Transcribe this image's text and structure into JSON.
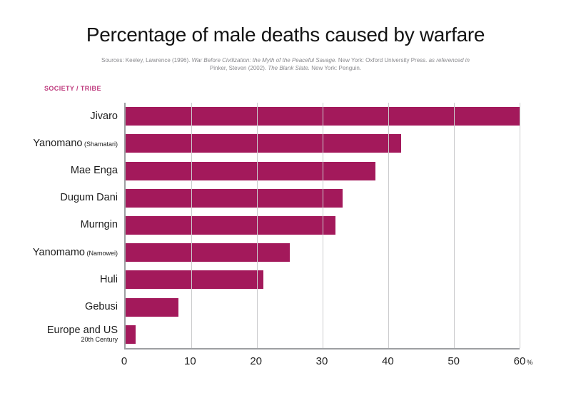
{
  "title": "Percentage of male deaths caused by warfare",
  "sources": {
    "line1": [
      {
        "text": "Sources: Keeley, Lawrence (1996). ",
        "italic": false
      },
      {
        "text": "War Before Civilization: the Myth of the Peaceful Savage.",
        "italic": true
      },
      {
        "text": " New York: Oxford University Press. ",
        "italic": false
      },
      {
        "text": "as referenced in",
        "italic": true
      }
    ],
    "line2": [
      {
        "text": "Pinker, Steven (2002). ",
        "italic": false
      },
      {
        "text": "The Blank Slate.",
        "italic": true
      },
      {
        "text": " New York: Penguin.",
        "italic": false
      }
    ]
  },
  "axis_header": "SOCIETY / TRIBE",
  "chart_data": {
    "type": "bar",
    "orientation": "horizontal",
    "title": "Percentage of male deaths caused by warfare",
    "xlabel": "%",
    "ylabel": "SOCIETY / TRIBE",
    "categories": [
      {
        "name": "Jivaro",
        "annotation": "",
        "annotation_below": ""
      },
      {
        "name": "Yanomano",
        "annotation": "(Shamatari)",
        "annotation_below": ""
      },
      {
        "name": "Mae Enga",
        "annotation": "",
        "annotation_below": ""
      },
      {
        "name": "Dugum Dani",
        "annotation": "",
        "annotation_below": ""
      },
      {
        "name": "Murngin",
        "annotation": "",
        "annotation_below": ""
      },
      {
        "name": "Yanomamo",
        "annotation": "(Namowei)",
        "annotation_below": ""
      },
      {
        "name": "Huli",
        "annotation": "",
        "annotation_below": ""
      },
      {
        "name": "Gebusi",
        "annotation": "",
        "annotation_below": ""
      },
      {
        "name": "Europe and US",
        "annotation": "",
        "annotation_below": "20th Century"
      }
    ],
    "values": [
      60,
      42,
      38,
      33,
      32,
      25,
      21,
      8,
      1.5
    ],
    "x_axis": {
      "min": 0,
      "max": 60,
      "ticks": [
        0,
        10,
        20,
        30,
        40,
        50,
        60
      ],
      "unit": "%"
    },
    "grid": true,
    "legend": false,
    "bar_color": "#a3195b",
    "gridline_color": "#cbcbcd",
    "axis_color": "#9d9fa2",
    "header_color": "#be3a7d"
  }
}
